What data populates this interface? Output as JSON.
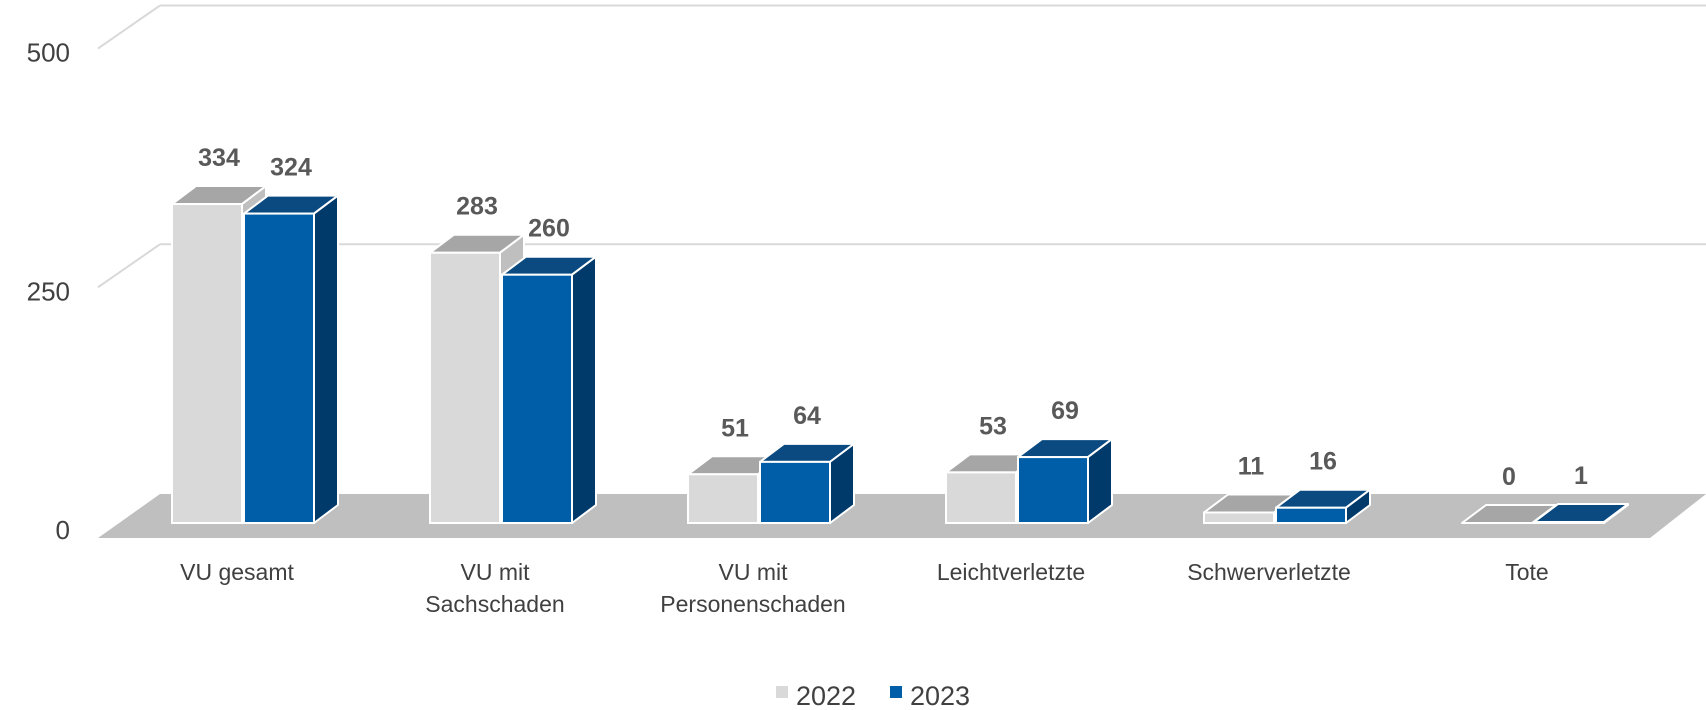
{
  "chart_data": {
    "type": "bar",
    "style": "3d-clustered-column",
    "categories": [
      [
        "VU gesamt"
      ],
      [
        "VU mit",
        "Sachschaden"
      ],
      [
        "VU mit",
        "Personenschaden"
      ],
      [
        "Leichtverletzte"
      ],
      [
        "Schwerverletzte"
      ],
      [
        "Tote"
      ]
    ],
    "series": [
      {
        "name": "2022",
        "values": [
          334,
          283,
          51,
          53,
          11,
          0
        ],
        "color": "#d9d9d9",
        "top_color": "#a6a6a6",
        "side_color": "#bfbfbf"
      },
      {
        "name": "2023",
        "values": [
          324,
          260,
          64,
          69,
          16,
          1
        ],
        "color": "#005ea8",
        "top_color": "#0a4a80",
        "side_color": "#003a6b"
      }
    ],
    "yticks": [
      "0",
      "250",
      "500"
    ],
    "ylim": [
      0,
      500
    ],
    "grid": true,
    "floor_color": "#bfbfbf",
    "data_labels": true,
    "legend_position": "bottom"
  }
}
